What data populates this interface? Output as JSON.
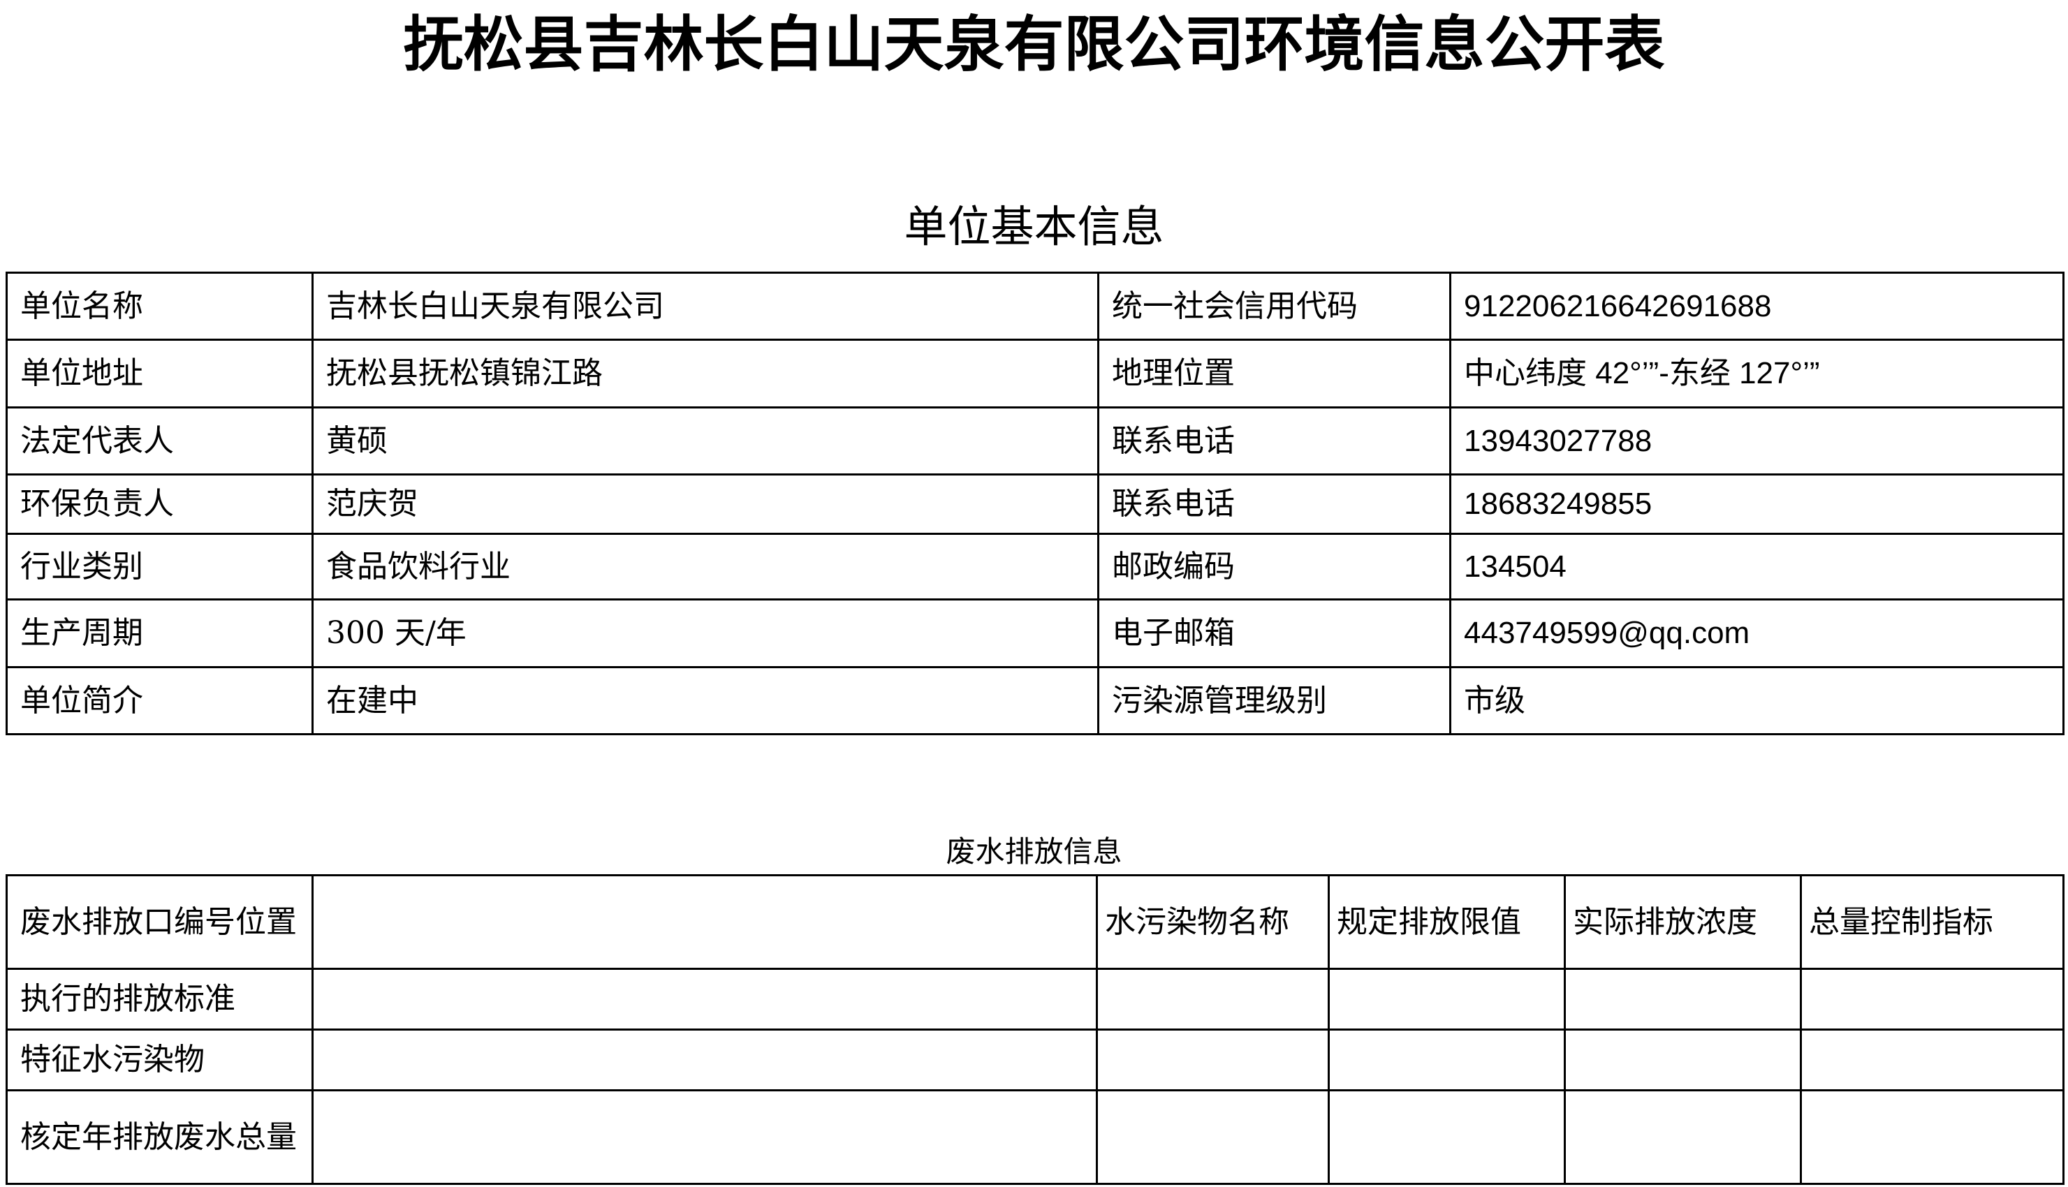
{
  "title": "抚松县吉林长白山天泉有限公司环境信息公开表",
  "basic_info": {
    "heading": "单位基本信息",
    "rows": [
      {
        "label1": "单位名称",
        "value1": "吉林长白山天泉有限公司",
        "label2": "统一社会信用代码",
        "value2": "91220621664269168​8"
      },
      {
        "label1": "单位地址",
        "value1": "抚松县抚松镇锦江路",
        "label2": "地理位置",
        "value2": "中心纬度 42°’”-东经 127°’”"
      },
      {
        "label1": "法定代表人",
        "value1": "黄硕",
        "label2": "联系电话",
        "value2": "13943027788"
      },
      {
        "label1": "环保负责人",
        "value1": "范庆贺",
        "label2": "联系电话",
        "value2": "18683249855"
      },
      {
        "label1": "行业类别",
        "value1": "食品饮料行业",
        "label2": "邮政编码",
        "value2": "134504"
      },
      {
        "label1": "生产周期",
        "value1": "300 天/年",
        "label2": "电子邮箱",
        "value2": "443749599@qq.com"
      },
      {
        "label1": "单位简介",
        "value1": "在建中",
        "label2": "污染源管理级别",
        "value2": "市级"
      }
    ]
  },
  "wastewater": {
    "heading": "废水排放信息",
    "header_label": "废水排放口编号位置",
    "columns": [
      "水污染物名称",
      "规定排放限值",
      "实际排放浓度",
      "总量控制指标"
    ],
    "rows": [
      "执行的排放标准",
      "特征水污染物",
      "核定年排放废水总量"
    ]
  }
}
